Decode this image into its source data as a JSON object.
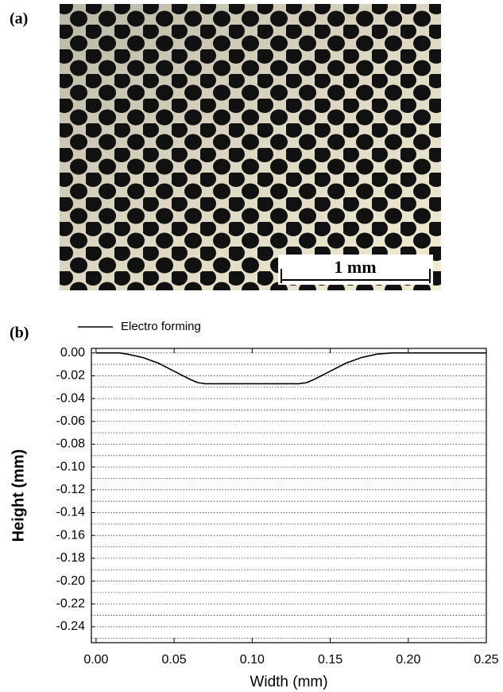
{
  "photo": {
    "label": "(a)",
    "scale_bar": "1 mm"
  },
  "chart_data": {
    "type": "line",
    "panel_label": "(b)",
    "x_label": "Width (mm)",
    "y_label": "Height (mm)",
    "x": [
      0,
      0.015,
      0.02,
      0.03,
      0.04,
      0.05,
      0.06,
      0.065,
      0.07,
      0.13,
      0.135,
      0.14,
      0.15,
      0.16,
      0.17,
      0.18,
      0.19,
      0.25
    ],
    "series": [
      {
        "name": "Electro forming",
        "color": "#000000",
        "values": [
          0,
          0,
          -0.001,
          -0.004,
          -0.009,
          -0.016,
          -0.023,
          -0.026,
          -0.027,
          -0.027,
          -0.026,
          -0.023,
          -0.016,
          -0.009,
          -0.004,
          -0.001,
          0,
          0
        ]
      }
    ],
    "xlim": [
      -0.003,
      0.25
    ],
    "ylim": [
      -0.254,
      0.004
    ],
    "xticks": [
      {
        "value": 0,
        "label": "0.00"
      },
      0.05,
      {
        "value": 0.1,
        "label": "0.10"
      },
      0.15,
      {
        "value": 0.2,
        "label": "0.20"
      },
      0.25
    ],
    "yticks": [
      {
        "value": 0,
        "label": "0.00"
      },
      -0.02,
      -0.04,
      -0.06,
      -0.08,
      {
        "value": -0.1,
        "label": "-0.10"
      },
      -0.12,
      -0.14,
      -0.16,
      -0.18,
      {
        "value": -0.2,
        "label": "-0.20"
      },
      -0.22,
      -0.24
    ],
    "yminorgrid": [
      -0.01,
      -0.03,
      -0.05,
      -0.07,
      -0.09,
      -0.11,
      -0.13,
      -0.15,
      -0.17,
      -0.19,
      -0.21,
      -0.23,
      -0.25
    ],
    "grid": true
  }
}
